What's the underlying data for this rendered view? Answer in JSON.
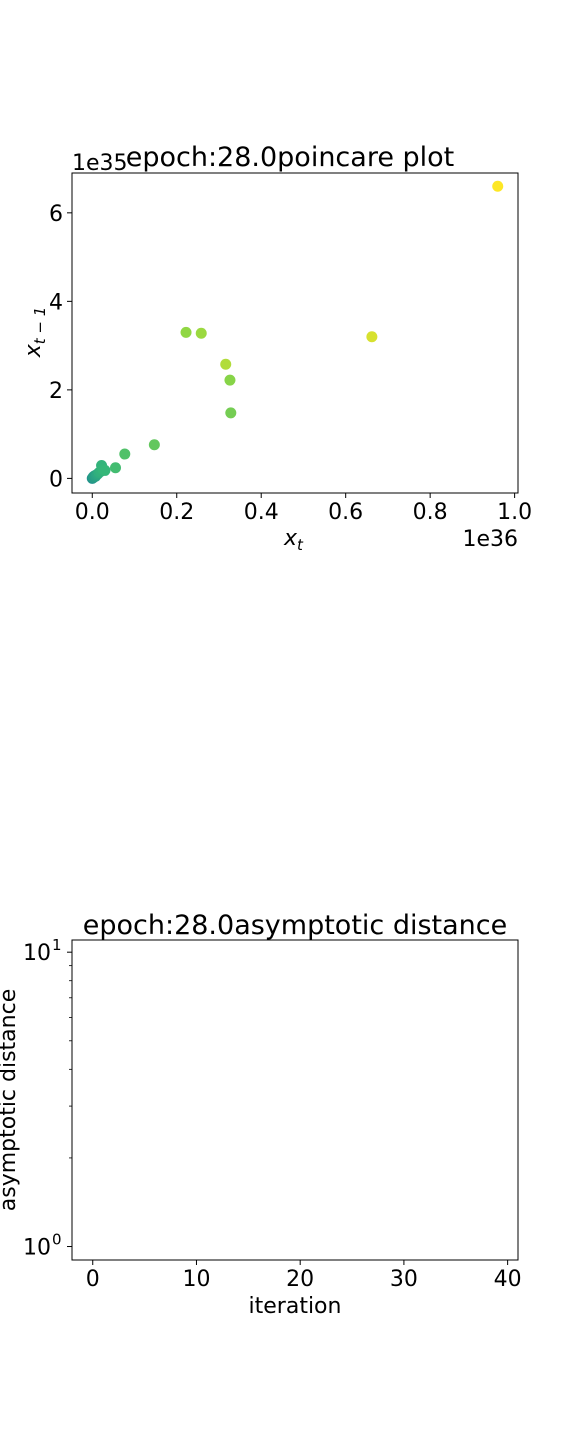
{
  "chart_data": [
    {
      "type": "scatter",
      "title": "epoch:28.0poincare plot",
      "xlabel": "x",
      "xlabel_sub": "t",
      "ylabel": "x",
      "ylabel_sub": "t − 1",
      "x_offset_text": "1e36",
      "y_offset_text": "1e35",
      "xlim": [
        -0.048,
        1.008
      ],
      "ylim": [
        -0.33,
        6.9
      ],
      "xticks": [
        0.0,
        0.2,
        0.4,
        0.6,
        0.8,
        1.0
      ],
      "xtick_labels": [
        "0.0",
        "0.2",
        "0.4",
        "0.6",
        "0.8",
        "1.0"
      ],
      "yticks": [
        0,
        2,
        4,
        6
      ],
      "ytick_labels": [
        "0",
        "2",
        "4",
        "6"
      ],
      "grid": false,
      "colormap": [
        "#440154",
        "#31688e",
        "#21918c",
        "#35b779",
        "#90d743",
        "#fde725"
      ],
      "points": [
        {
          "x": 0.0,
          "y": 0.0,
          "c": 0.4
        },
        {
          "x": 0.001,
          "y": 0.01,
          "c": 0.42
        },
        {
          "x": 0.002,
          "y": 0.02,
          "c": 0.44
        },
        {
          "x": 0.003,
          "y": 0.04,
          "c": 0.45
        },
        {
          "x": 0.004,
          "y": 0.03,
          "c": 0.46
        },
        {
          "x": 0.006,
          "y": 0.06,
          "c": 0.47
        },
        {
          "x": 0.008,
          "y": 0.05,
          "c": 0.48
        },
        {
          "x": 0.01,
          "y": 0.08,
          "c": 0.5
        },
        {
          "x": 0.013,
          "y": 0.1,
          "c": 0.52
        },
        {
          "x": 0.016,
          "y": 0.13,
          "c": 0.55
        },
        {
          "x": 0.02,
          "y": 0.16,
          "c": 0.57
        },
        {
          "x": 0.022,
          "y": 0.29,
          "c": 0.58
        },
        {
          "x": 0.025,
          "y": 0.2,
          "c": 0.59
        },
        {
          "x": 0.03,
          "y": 0.18,
          "c": 0.6
        },
        {
          "x": 0.055,
          "y": 0.24,
          "c": 0.63
        },
        {
          "x": 0.077,
          "y": 0.55,
          "c": 0.66
        },
        {
          "x": 0.147,
          "y": 0.76,
          "c": 0.7
        },
        {
          "x": 0.222,
          "y": 3.3,
          "c": 0.8
        },
        {
          "x": 0.258,
          "y": 3.28,
          "c": 0.82
        },
        {
          "x": 0.316,
          "y": 2.58,
          "c": 0.86
        },
        {
          "x": 0.326,
          "y": 2.22,
          "c": 0.78
        },
        {
          "x": 0.328,
          "y": 1.48,
          "c": 0.74
        },
        {
          "x": 0.662,
          "y": 3.2,
          "c": 0.93
        },
        {
          "x": 0.96,
          "y": 6.6,
          "c": 1.0
        }
      ]
    },
    {
      "type": "line",
      "title": "epoch:28.0asymptotic distance",
      "xlabel": "iteration",
      "ylabel": "asymptotic distance",
      "xlim": [
        -2,
        41
      ],
      "ylim": [
        0.9,
        11.0
      ],
      "yscale": "log",
      "xticks": [
        0,
        10,
        20,
        30,
        40
      ],
      "xtick_labels": [
        "0",
        "10",
        "20",
        "30",
        "40"
      ],
      "yticks_major": [
        1,
        10
      ],
      "ytick_labels": [
        "10",
        "10"
      ],
      "ytick_exponents": [
        "0",
        "1"
      ],
      "yticks_minor": [
        2,
        3,
        4,
        5,
        6,
        7,
        8,
        9
      ],
      "series": []
    }
  ]
}
